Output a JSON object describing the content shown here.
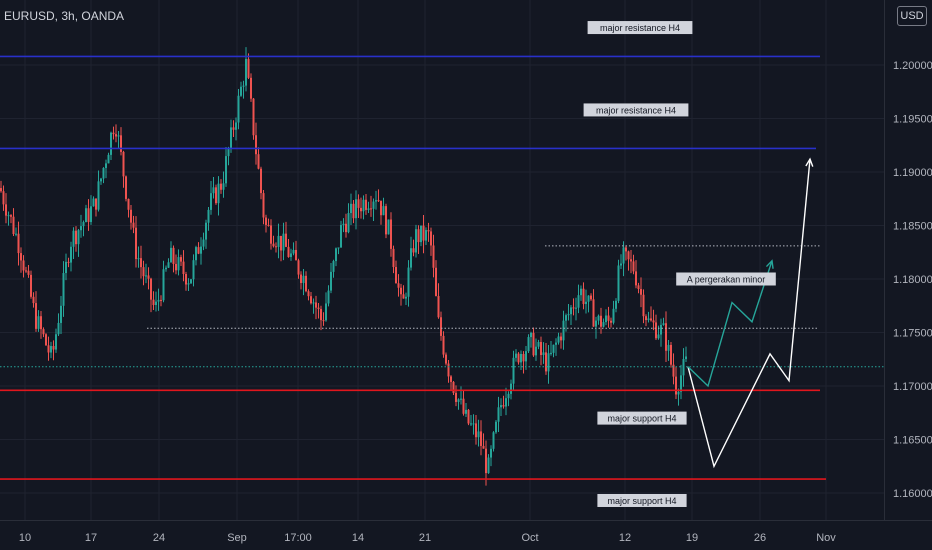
{
  "header": {
    "symbol_title": "EURUSD, 3h, OANDA",
    "currency": "USD"
  },
  "chart_data": {
    "type": "candlestick",
    "title": "EURUSD, 3h, OANDA",
    "ylim": [
      1.1555,
      1.2105
    ],
    "y_ticks": [
      "1.20000",
      "1.19500",
      "1.19000",
      "1.18500",
      "1.18000",
      "1.17500",
      "1.17000",
      "1.16500",
      "1.16000"
    ],
    "x_ticks": [
      "10",
      "17",
      "24",
      "Sep",
      "17:00",
      "14",
      "21",
      "Oct",
      "12",
      "19",
      "26",
      "Nov"
    ],
    "grid": true,
    "price_path": [
      {
        "x": 0,
        "y": 1.1885
      },
      {
        "x": 20,
        "y": 1.183
      },
      {
        "x": 35,
        "y": 1.1765
      },
      {
        "x": 52,
        "y": 1.1725
      },
      {
        "x": 70,
        "y": 1.1835
      },
      {
        "x": 95,
        "y": 1.187
      },
      {
        "x": 115,
        "y": 1.195
      },
      {
        "x": 135,
        "y": 1.183
      },
      {
        "x": 155,
        "y": 1.177
      },
      {
        "x": 170,
        "y": 1.182
      },
      {
        "x": 190,
        "y": 1.18
      },
      {
        "x": 210,
        "y": 1.187
      },
      {
        "x": 222,
        "y": 1.189
      },
      {
        "x": 235,
        "y": 1.195
      },
      {
        "x": 246,
        "y": 1.2
      },
      {
        "x": 256,
        "y": 1.192
      },
      {
        "x": 265,
        "y": 1.185
      },
      {
        "x": 285,
        "y": 1.183
      },
      {
        "x": 305,
        "y": 1.18
      },
      {
        "x": 322,
        "y": 1.176
      },
      {
        "x": 342,
        "y": 1.185
      },
      {
        "x": 360,
        "y": 1.187
      },
      {
        "x": 377,
        "y": 1.188
      },
      {
        "x": 390,
        "y": 1.184
      },
      {
        "x": 402,
        "y": 1.177
      },
      {
        "x": 415,
        "y": 1.184
      },
      {
        "x": 430,
        "y": 1.184
      },
      {
        "x": 438,
        "y": 1.176
      },
      {
        "x": 450,
        "y": 1.171
      },
      {
        "x": 465,
        "y": 1.167
      },
      {
        "x": 480,
        "y": 1.165
      },
      {
        "x": 488,
        "y": 1.162
      },
      {
        "x": 500,
        "y": 1.168
      },
      {
        "x": 518,
        "y": 1.173
      },
      {
        "x": 532,
        "y": 1.174
      },
      {
        "x": 548,
        "y": 1.172
      },
      {
        "x": 565,
        "y": 1.176
      },
      {
        "x": 580,
        "y": 1.179
      },
      {
        "x": 597,
        "y": 1.176
      },
      {
        "x": 610,
        "y": 1.176
      },
      {
        "x": 622,
        "y": 1.182
      },
      {
        "x": 634,
        "y": 1.181
      },
      {
        "x": 648,
        "y": 1.176
      },
      {
        "x": 664,
        "y": 1.175
      },
      {
        "x": 676,
        "y": 1.17
      },
      {
        "x": 688,
        "y": 1.1725
      }
    ],
    "annotations": [
      {
        "type": "hline",
        "label": "major resistance H4",
        "price": 1.2008,
        "color": "#2930c9",
        "x_start": 0,
        "x_end": 820,
        "label_x": 640,
        "label_price": 1.2035
      },
      {
        "type": "hline",
        "label": "major resistance H4",
        "price": 1.1922,
        "color": "#2930c9",
        "x_start": 0,
        "x_end": 816,
        "label_x": 636,
        "label_price": 1.1958
      },
      {
        "type": "hline",
        "label": "major support H4",
        "price": 1.1696,
        "color": "#e0161d",
        "x_start": 0,
        "x_end": 820,
        "label_x": 642,
        "label_price": 1.167
      },
      {
        "type": "hline",
        "label": "major support H4",
        "price": 1.1613,
        "color": "#e0161d",
        "x_start": 0,
        "x_end": 826,
        "label_x": 642,
        "label_price": 1.1593
      }
    ],
    "dotted_levels": [
      {
        "price": 1.1831,
        "x_start": 545,
        "x_end": 820,
        "color": "#b2b5be"
      },
      {
        "price": 1.1754,
        "x_start": 147,
        "x_end": 818,
        "color": "#b2b5be"
      },
      {
        "price": 1.1718,
        "x_start": 0,
        "x_end": 884,
        "color": "#26a69a"
      }
    ],
    "projection_minor": {
      "label": "A pergerakan minor",
      "label_x": 726,
      "label_price": 1.18,
      "color": "#26a69a",
      "points": [
        {
          "x": 688,
          "y": 1.1718
        },
        {
          "x": 708,
          "y": 1.17
        },
        {
          "x": 732,
          "y": 1.1778
        },
        {
          "x": 752,
          "y": 1.176
        },
        {
          "x": 772,
          "y": 1.1817
        }
      ]
    },
    "projection_major": {
      "color": "#ffffff",
      "points": [
        {
          "x": 688,
          "y": 1.1718
        },
        {
          "x": 714,
          "y": 1.1625
        },
        {
          "x": 770,
          "y": 1.173
        },
        {
          "x": 789,
          "y": 1.1705
        },
        {
          "x": 810,
          "y": 1.1912
        }
      ]
    },
    "up_color": "#26a69a",
    "down_color": "#ef5350"
  }
}
